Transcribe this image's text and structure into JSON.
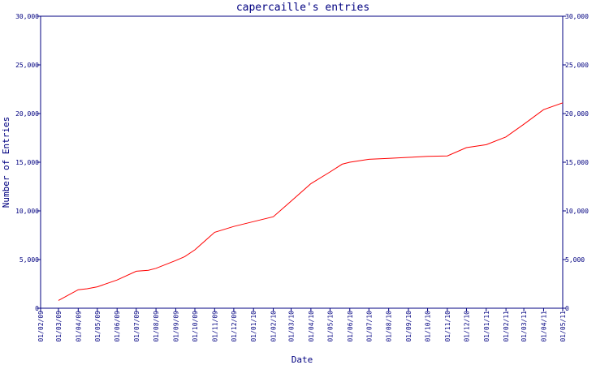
{
  "chart_data": {
    "type": "line",
    "title": "capercaille's entries",
    "xlabel": "Date",
    "ylabel": "Number of Entries",
    "ylim": [
      0,
      30000
    ],
    "y_ticks": [
      0,
      5000,
      10000,
      15000,
      20000,
      25000,
      30000
    ],
    "y_tick_labels": [
      "0",
      "5,000",
      "10,000",
      "15,000",
      "20,000",
      "25,000",
      "30,000"
    ],
    "x_tick_labels": [
      "01/02/09",
      "01/03/09",
      "01/04/09",
      "01/05/09",
      "01/06/09",
      "01/07/09",
      "01/08/09",
      "01/09/09",
      "01/10/09",
      "01/11/09",
      "01/12/09",
      "01/01/10",
      "01/02/10",
      "01/03/10",
      "01/04/10",
      "01/05/10",
      "01/06/10",
      "01/07/10",
      "01/08/10",
      "01/09/10",
      "01/10/10",
      "01/11/10",
      "01/12/10",
      "01/01/11",
      "01/02/11",
      "01/03/11",
      "01/04/11",
      "01/05/11"
    ],
    "grid": false,
    "line_color": "#ff0000",
    "axis_color": "#000080",
    "series": [
      {
        "x": [
          "2009-03-01",
          "2009-04-01",
          "2009-04-15",
          "2009-05-01",
          "2009-06-01",
          "2009-07-01",
          "2009-07-20",
          "2009-08-01",
          "2009-09-01",
          "2009-09-15",
          "2009-10-01",
          "2009-11-01",
          "2009-12-01",
          "2010-01-01",
          "2010-02-01",
          "2010-03-01",
          "2010-04-01",
          "2010-05-01",
          "2010-05-20",
          "2010-06-01",
          "2010-07-01",
          "2010-08-01",
          "2010-09-01",
          "2010-10-01",
          "2010-11-01",
          "2010-12-01",
          "2011-01-01",
          "2011-02-01",
          "2011-03-01",
          "2011-04-01",
          "2011-05-01"
        ],
        "values": [
          800,
          1900,
          2000,
          2200,
          2900,
          3800,
          3900,
          4100,
          4900,
          5300,
          6000,
          7800,
          8400,
          8900,
          9400,
          11000,
          12800,
          14000,
          14800,
          15000,
          15300,
          15400,
          15500,
          15600,
          15650,
          16500,
          16800,
          17600,
          18900,
          20400,
          21100
        ]
      }
    ]
  }
}
